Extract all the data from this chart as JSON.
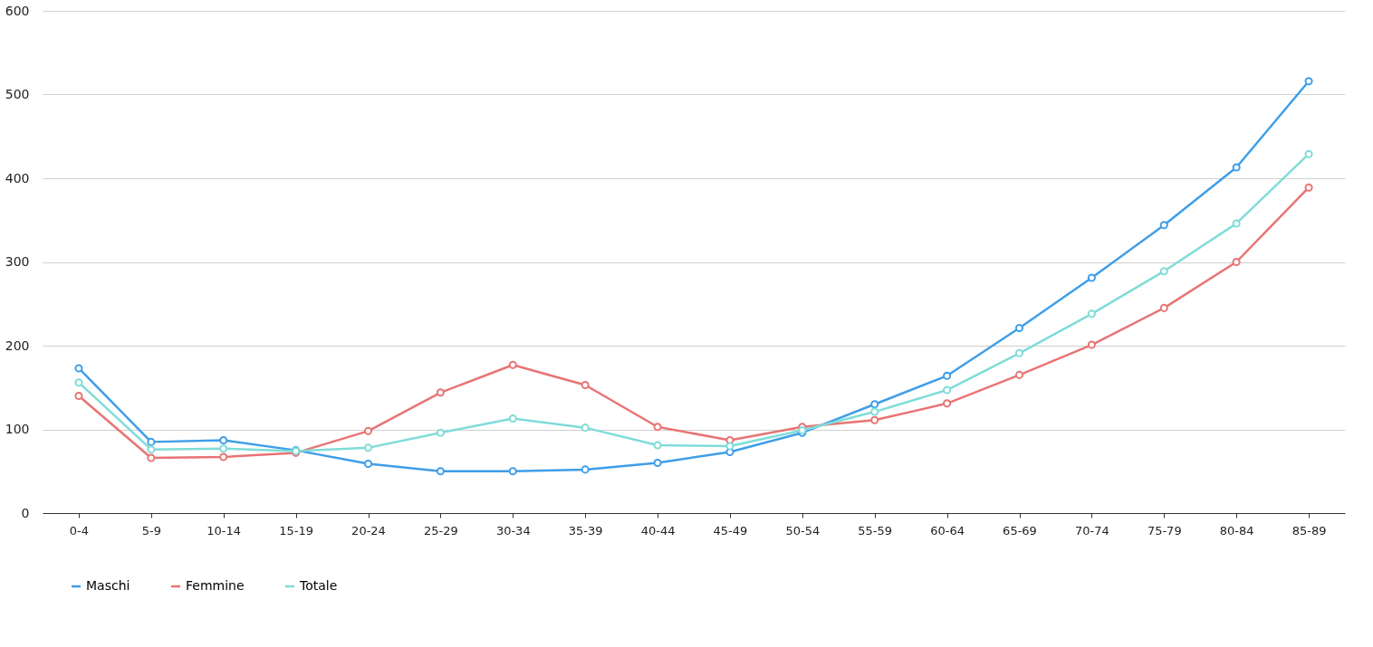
{
  "chart_data": {
    "type": "line",
    "categories": [
      "0-4",
      "5-9",
      "10-14",
      "15-19",
      "20-24",
      "25-29",
      "30-34",
      "35-39",
      "40-44",
      "45-49",
      "50-54",
      "55-59",
      "60-64",
      "65-69",
      "70-74",
      "75-79",
      "80-84",
      "85-89"
    ],
    "series": [
      {
        "name": "Maschi",
        "color": "#3f9ee8",
        "values": [
          173,
          85,
          87,
          75,
          59,
          50,
          50,
          52,
          60,
          73,
          96,
          130,
          164,
          221,
          281,
          344,
          413,
          516
        ]
      },
      {
        "name": "Femmine",
        "color": "#e87474",
        "values": [
          140,
          66,
          67,
          72,
          98,
          144,
          177,
          153,
          103,
          87,
          103,
          111,
          131,
          165,
          201,
          245,
          300,
          389
        ]
      },
      {
        "name": "Totale",
        "color": "#7fdcd8",
        "values": [
          156,
          76,
          77,
          74,
          78,
          96,
          113,
          102,
          81,
          80,
          99,
          121,
          147,
          191,
          238,
          289,
          346,
          429
        ]
      }
    ],
    "ylim": [
      0,
      600
    ],
    "yticks": [
      0,
      100,
      200,
      300,
      400,
      500,
      600
    ],
    "grid": "y",
    "legend": "bottom",
    "marker": "circle",
    "line_style": "solid"
  }
}
